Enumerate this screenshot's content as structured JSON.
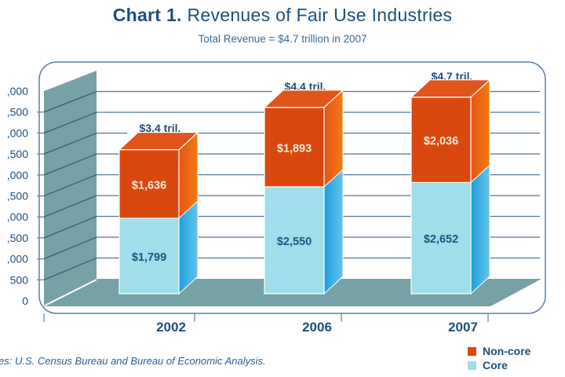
{
  "title": {
    "bold": "Chart 1.",
    "rest": "Revenues of Fair Use Industries"
  },
  "subtitle": "Total Revenue = $4.7 trillion in 2007",
  "source": "es: U.S. Census Bureau and Bureau of Economic Analysis.",
  "colors": {
    "noncore": "#d9490f",
    "noncore_side": "#f57b12",
    "noncore_top": "#e0551a",
    "core": "#9fdeea",
    "core_side": "#1c9fdc",
    "wall": "#76a1a6",
    "grid": "#4f7698",
    "text": "#1f4f7b"
  },
  "legend": [
    {
      "label": "Non-core",
      "color": "#d9490f"
    },
    {
      "label": "Core",
      "color": "#9fdeea"
    }
  ],
  "chart_data": {
    "type": "bar",
    "stacked": true,
    "three_d": true,
    "title": "Chart 1. Revenues of Fair Use Industries",
    "subtitle": "Total Revenue = $4.7 trillion in 2007",
    "xlabel": "",
    "ylabel": "",
    "categories": [
      "2002",
      "2006",
      "2007"
    ],
    "series": [
      {
        "name": "Core",
        "values": [
          1799,
          2550,
          2652
        ],
        "labels": [
          "$1,799",
          "$2,550",
          "$2,652"
        ]
      },
      {
        "name": "Non-core",
        "values": [
          1636,
          1893,
          2036
        ],
        "labels": [
          "$1,636",
          "$1,893",
          "$2,036"
        ]
      }
    ],
    "totals": [
      "$3.4 tril.",
      "$4.4 tril.",
      "$4.7 tril."
    ],
    "ylim": [
      0,
      5000
    ],
    "yticks": [
      0,
      500,
      1000,
      1500,
      2000,
      2500,
      3000,
      3500,
      4000,
      4500,
      5000
    ],
    "ytick_labels": [
      "0",
      "500",
      ",000",
      ",500",
      ",000",
      ",500",
      ",000",
      ",500",
      ",000",
      ",500",
      ",000"
    ],
    "grid": true,
    "legend_position": "bottom-right"
  }
}
